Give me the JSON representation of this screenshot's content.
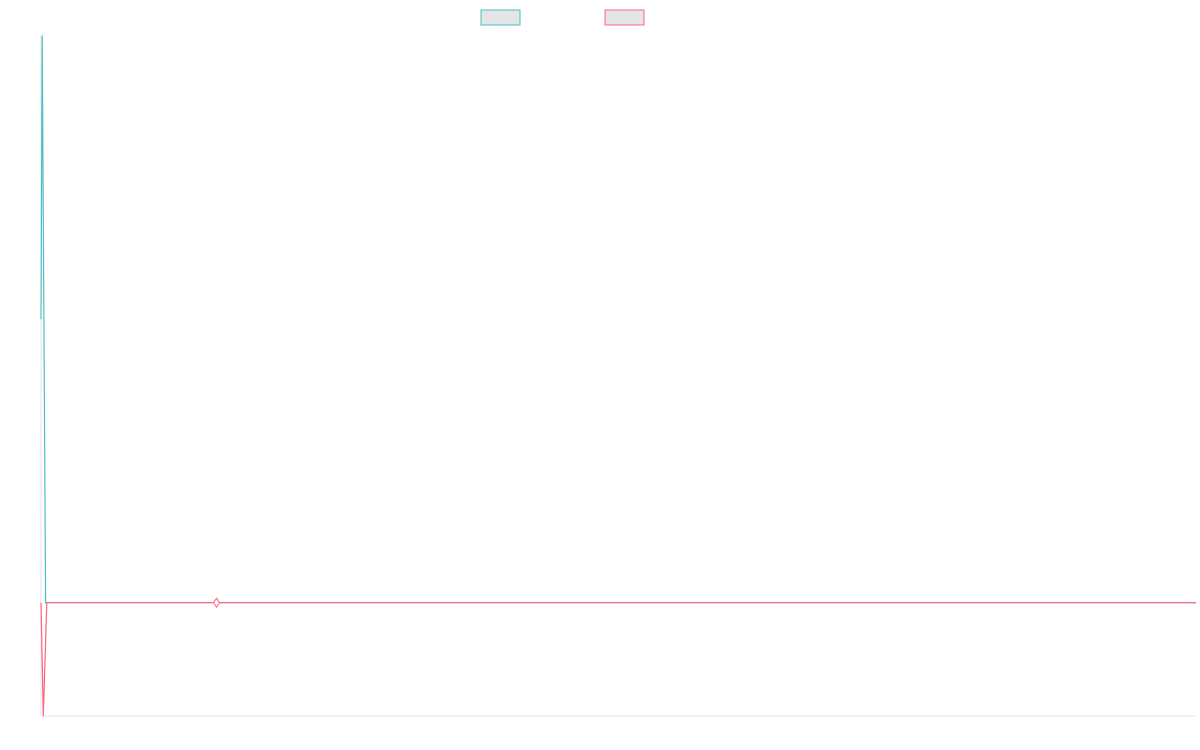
{
  "chart_data": {
    "type": "line",
    "title": "",
    "xlabel": "",
    "ylabel": "",
    "grid": false,
    "legend_position": "top-center",
    "ylim": [
      -2,
      10
    ],
    "xlim": [
      0,
      50
    ],
    "series": [
      {
        "color": "#4bc0c0",
        "fill": "#e5e5e5",
        "points": [
          [
            0,
            5
          ],
          [
            0.05,
            10
          ],
          [
            0.2,
            0
          ],
          [
            50,
            0
          ]
        ]
      },
      {
        "color": "#ff6384",
        "fill": "#e5e5e5",
        "points": [
          [
            0,
            0
          ],
          [
            0.1,
            -2
          ],
          [
            0.25,
            0
          ],
          [
            50,
            0
          ]
        ]
      }
    ],
    "markers": [
      {
        "x": 7.6,
        "y": 0,
        "shape": "diamond",
        "stroke": "#ff6384",
        "fill": "#ffffff"
      }
    ]
  }
}
